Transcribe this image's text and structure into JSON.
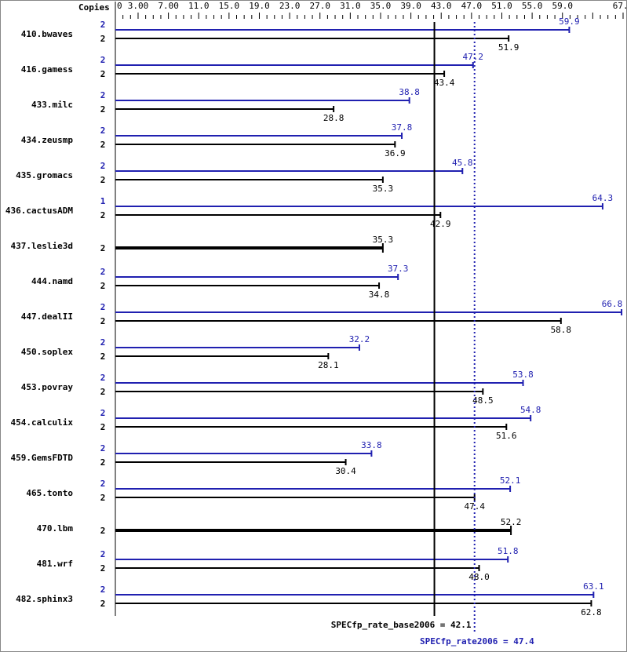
{
  "chart_data": {
    "type": "bar",
    "orientation": "horizontal",
    "copies_header": "Copies",
    "xlim": [
      0,
      67
    ],
    "tick_labels": [
      "0",
      "3.00",
      "7.00",
      "11.0",
      "15.0",
      "19.0",
      "23.0",
      "27.0",
      "31.0",
      "35.0",
      "39.0",
      "43.0",
      "47.0",
      "51.0",
      "55.0",
      "59.0",
      "67.0"
    ],
    "tick_values": [
      0,
      3,
      7,
      11,
      15,
      19,
      23,
      27,
      31,
      35,
      39,
      43,
      47,
      51,
      55,
      59,
      67
    ],
    "colors": {
      "base": "#000000",
      "peak": "#2020b0"
    },
    "benchmarks": [
      {
        "name": "410.bwaves",
        "peak_copies": "2",
        "peak": 59.9,
        "base_copies": "2",
        "base": 51.9
      },
      {
        "name": "416.gamess",
        "peak_copies": "2",
        "peak": 47.2,
        "base_copies": "2",
        "base": 43.4
      },
      {
        "name": "433.milc",
        "peak_copies": "2",
        "peak": 38.8,
        "base_copies": "2",
        "base": 28.8
      },
      {
        "name": "434.zeusmp",
        "peak_copies": "2",
        "peak": 37.8,
        "base_copies": "2",
        "base": 36.9
      },
      {
        "name": "435.gromacs",
        "peak_copies": "2",
        "peak": 45.8,
        "base_copies": "2",
        "base": 35.3
      },
      {
        "name": "436.cactusADM",
        "peak_copies": "1",
        "peak": 64.3,
        "base_copies": "2",
        "base": 42.9
      },
      {
        "name": "437.leslie3d",
        "peak_copies": null,
        "peak": null,
        "base_copies": "2",
        "base": 35.3
      },
      {
        "name": "444.namd",
        "peak_copies": "2",
        "peak": 37.3,
        "base_copies": "2",
        "base": 34.8
      },
      {
        "name": "447.dealII",
        "peak_copies": "2",
        "peak": 66.8,
        "base_copies": "2",
        "base": 58.8
      },
      {
        "name": "450.soplex",
        "peak_copies": "2",
        "peak": 32.2,
        "base_copies": "2",
        "base": 28.1
      },
      {
        "name": "453.povray",
        "peak_copies": "2",
        "peak": 53.8,
        "base_copies": "2",
        "base": 48.5
      },
      {
        "name": "454.calculix",
        "peak_copies": "2",
        "peak": 54.8,
        "base_copies": "2",
        "base": 51.6
      },
      {
        "name": "459.GemsFDTD",
        "peak_copies": "2",
        "peak": 33.8,
        "base_copies": "2",
        "base": 30.4
      },
      {
        "name": "465.tonto",
        "peak_copies": "2",
        "peak": 52.1,
        "base_copies": "2",
        "base": 47.4
      },
      {
        "name": "470.lbm",
        "peak_copies": null,
        "peak": null,
        "base_copies": "2",
        "base": 52.2
      },
      {
        "name": "481.wrf",
        "peak_copies": "2",
        "peak": 51.8,
        "base_copies": "2",
        "base": 48.0
      },
      {
        "name": "482.sphinx3",
        "peak_copies": "2",
        "peak": 63.1,
        "base_copies": "2",
        "base": 62.8
      }
    ],
    "summary": {
      "base_label": "SPECfp_rate_base2006 = 42.1",
      "base_value": 42.1,
      "peak_label": "SPECfp_rate2006 = 47.4",
      "peak_value": 47.4
    }
  }
}
